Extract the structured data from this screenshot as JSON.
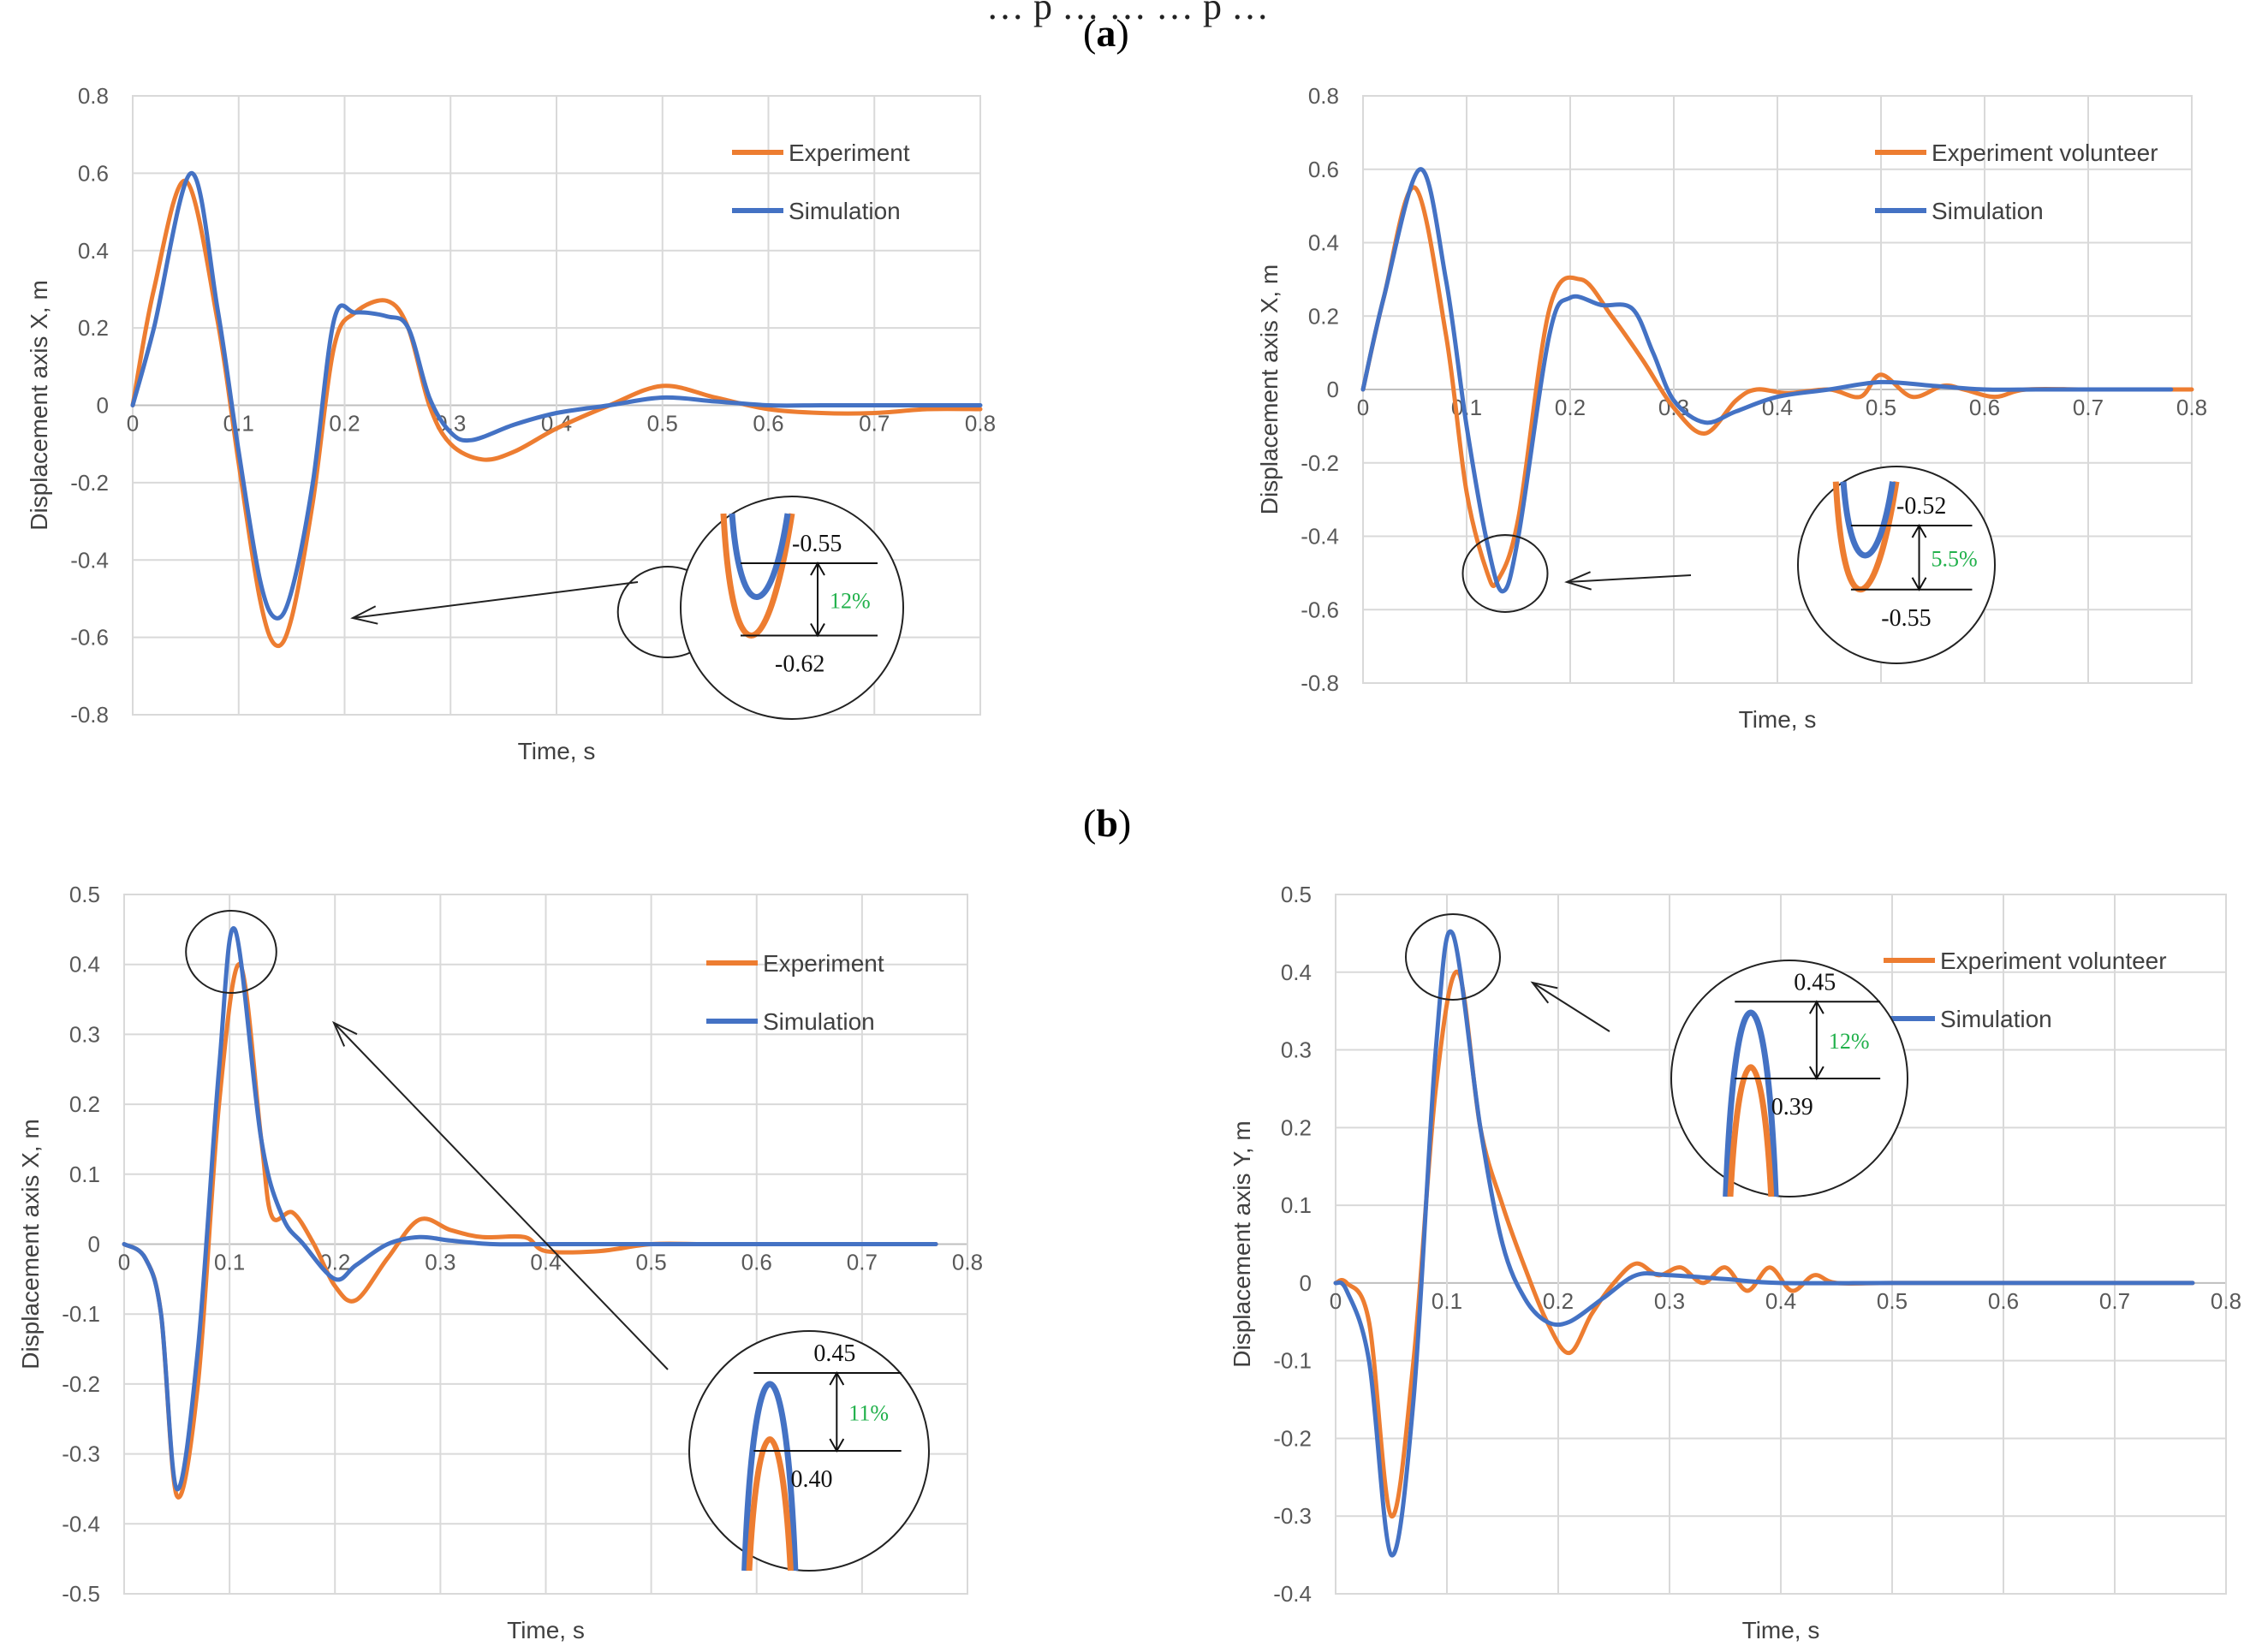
{
  "caption_partial": "… p … … … p …",
  "panels": [
    {
      "label": "a",
      "prefix": "(",
      "suffix": ")"
    },
    {
      "label": "b",
      "prefix": "(",
      "suffix": ")"
    }
  ],
  "colors": {
    "experiment": "#ED7D31",
    "simulation": "#4472C4",
    "grid": "#D9D9D9",
    "pct": "#22B14C"
  },
  "chart_data": [
    {
      "type": "line",
      "panel": "a",
      "position_word": "top-left",
      "xlabel": "Time, s",
      "ylabel": "Displacement axis X, m",
      "xlim": [
        0,
        0.8
      ],
      "ylim": [
        -0.8,
        0.8
      ],
      "xticks": [
        0,
        0.1,
        0.2,
        0.3,
        0.4,
        0.5,
        0.6,
        0.7,
        0.8
      ],
      "xtick_labels": [
        "0",
        "0.1",
        "0.2",
        "0.3",
        "0.4",
        "0.5",
        "0.6",
        "0.7",
        "0.8"
      ],
      "yticks": [
        -0.8,
        -0.6,
        -0.4,
        -0.2,
        0,
        0.2,
        0.4,
        0.6,
        0.8
      ],
      "ytick_labels": [
        "-0.8",
        "-0.6",
        "-0.4",
        "-0.2",
        "0",
        "0.2",
        "0.4",
        "0.6",
        "0.8"
      ],
      "legend": [
        "Experiment",
        "Simulation"
      ],
      "legend_position": "top-right",
      "series": [
        {
          "name": "Experiment",
          "x": [
            0,
            0.02,
            0.05,
            0.08,
            0.1,
            0.12,
            0.135,
            0.15,
            0.17,
            0.19,
            0.21,
            0.24,
            0.26,
            0.28,
            0.3,
            0.33,
            0.36,
            0.4,
            0.45,
            0.5,
            0.55,
            0.6,
            0.65,
            0.7,
            0.75,
            0.8
          ],
          "y": [
            0,
            0.3,
            0.58,
            0.22,
            -0.15,
            -0.5,
            -0.62,
            -0.55,
            -0.25,
            0.15,
            0.24,
            0.27,
            0.2,
            0.0,
            -0.1,
            -0.14,
            -0.12,
            -0.06,
            0.0,
            0.05,
            0.02,
            -0.01,
            -0.02,
            -0.02,
            -0.01,
            -0.01
          ]
        },
        {
          "name": "Simulation",
          "x": [
            0,
            0.02,
            0.055,
            0.08,
            0.1,
            0.12,
            0.135,
            0.15,
            0.17,
            0.19,
            0.21,
            0.24,
            0.26,
            0.28,
            0.3,
            0.32,
            0.36,
            0.4,
            0.45,
            0.5,
            0.55,
            0.6,
            0.65,
            0.7,
            0.75,
            0.8
          ],
          "y": [
            0,
            0.2,
            0.6,
            0.25,
            -0.12,
            -0.45,
            -0.55,
            -0.48,
            -0.2,
            0.22,
            0.24,
            0.23,
            0.2,
            0.02,
            -0.07,
            -0.09,
            -0.05,
            -0.02,
            0.0,
            0.02,
            0.01,
            0.0,
            0.0,
            0.0,
            0.0,
            0.0
          ]
        }
      ],
      "zoom": {
        "values": [
          "-0.55",
          "-0.62"
        ],
        "percent": "12%"
      }
    },
    {
      "type": "line",
      "panel": "a",
      "position_word": "top-right",
      "xlabel": "Time, s",
      "ylabel": "Displacement axis X, m",
      "xlim": [
        0,
        0.8
      ],
      "ylim": [
        -0.8,
        0.8
      ],
      "xticks": [
        0,
        0.1,
        0.2,
        0.3,
        0.4,
        0.5,
        0.6,
        0.7,
        0.8
      ],
      "xtick_labels": [
        "0",
        "0.1",
        "0.2",
        "0.3",
        "0.4",
        "0.5",
        "0.6",
        "0.7",
        "0.8"
      ],
      "yticks": [
        -0.8,
        -0.6,
        -0.4,
        -0.2,
        0,
        0.2,
        0.4,
        0.6,
        0.8
      ],
      "ytick_labels": [
        "-0.8",
        "-0.6",
        "-0.4",
        "-0.2",
        "0",
        "0.2",
        "0.4",
        "0.6",
        "0.8"
      ],
      "legend": [
        "Experiment volunteer",
        "Simulation"
      ],
      "legend_position": "top-right",
      "series": [
        {
          "name": "Experiment volunteer",
          "x": [
            0,
            0.02,
            0.05,
            0.08,
            0.1,
            0.12,
            0.13,
            0.15,
            0.18,
            0.21,
            0.24,
            0.27,
            0.3,
            0.33,
            0.36,
            0.38,
            0.41,
            0.45,
            0.48,
            0.5,
            0.53,
            0.56,
            0.58,
            0.61,
            0.64,
            0.7,
            0.78,
            0.8
          ],
          "y": [
            0,
            0.25,
            0.55,
            0.15,
            -0.28,
            -0.5,
            -0.52,
            -0.35,
            0.22,
            0.3,
            0.2,
            0.08,
            -0.05,
            -0.12,
            -0.03,
            0.0,
            -0.01,
            0.0,
            -0.02,
            0.04,
            -0.02,
            0.01,
            0.0,
            -0.02,
            0.0,
            0.0,
            0.0,
            0.0
          ]
        },
        {
          "name": "Simulation",
          "x": [
            0,
            0.02,
            0.055,
            0.08,
            0.1,
            0.12,
            0.135,
            0.15,
            0.18,
            0.2,
            0.23,
            0.26,
            0.28,
            0.3,
            0.33,
            0.36,
            0.4,
            0.45,
            0.5,
            0.55,
            0.6,
            0.65,
            0.7,
            0.78
          ],
          "y": [
            0,
            0.25,
            0.6,
            0.3,
            -0.1,
            -0.42,
            -0.55,
            -0.4,
            0.15,
            0.25,
            0.23,
            0.22,
            0.1,
            -0.03,
            -0.09,
            -0.06,
            -0.02,
            0.0,
            0.02,
            0.01,
            0.0,
            0.0,
            0.0,
            0.0
          ]
        }
      ],
      "zoom": {
        "values": [
          "-0.52",
          "-0.55"
        ],
        "percent": "5.5%"
      }
    },
    {
      "type": "line",
      "panel": "b",
      "position_word": "bottom-left",
      "xlabel": "Time, s",
      "ylabel": "Displacement axis X, m",
      "xlim": [
        0,
        0.8
      ],
      "ylim": [
        -0.5,
        0.5
      ],
      "xticks": [
        0,
        0.1,
        0.2,
        0.3,
        0.4,
        0.5,
        0.6,
        0.7,
        0.8
      ],
      "xtick_labels": [
        "0",
        "0.1",
        "0.2",
        "0.3",
        "0.4",
        "0.5",
        "0.6",
        "0.7",
        "0.8"
      ],
      "yticks": [
        -0.5,
        -0.4,
        -0.3,
        -0.2,
        -0.1,
        0,
        0.1,
        0.2,
        0.3,
        0.4,
        0.5
      ],
      "ytick_labels": [
        "-0.5",
        "-0.4",
        "-0.3",
        "-0.2",
        "-0.1",
        "0",
        "0.1",
        "0.2",
        "0.3",
        "0.4",
        "0.5"
      ],
      "legend": [
        "Experiment",
        "Simulation"
      ],
      "legend_position": "top-right",
      "series": [
        {
          "name": "Experiment",
          "x": [
            0,
            0.02,
            0.035,
            0.05,
            0.07,
            0.09,
            0.11,
            0.13,
            0.14,
            0.16,
            0.18,
            0.2,
            0.22,
            0.25,
            0.28,
            0.31,
            0.34,
            0.38,
            0.4,
            0.45,
            0.5,
            0.55,
            0.6,
            0.65,
            0.7,
            0.77
          ],
          "y": [
            0,
            -0.02,
            -0.1,
            -0.36,
            -0.2,
            0.2,
            0.4,
            0.15,
            0.04,
            0.045,
            0.0,
            -0.06,
            -0.08,
            -0.02,
            0.035,
            0.02,
            0.01,
            0.01,
            -0.01,
            -0.01,
            0.0,
            0.0,
            0.0,
            0.0,
            0.0,
            0.0
          ]
        },
        {
          "name": "Simulation",
          "x": [
            0,
            0.02,
            0.035,
            0.05,
            0.07,
            0.09,
            0.105,
            0.13,
            0.15,
            0.17,
            0.2,
            0.22,
            0.25,
            0.28,
            0.31,
            0.35,
            0.4,
            0.5,
            0.6,
            0.7,
            0.77
          ],
          "y": [
            0,
            -0.02,
            -0.1,
            -0.35,
            -0.15,
            0.25,
            0.45,
            0.15,
            0.04,
            0.0,
            -0.05,
            -0.03,
            0.0,
            0.01,
            0.005,
            0.0,
            0.0,
            0.0,
            0.0,
            0.0,
            0.0
          ]
        }
      ],
      "zoom": {
        "values": [
          "0.45",
          "0.40"
        ],
        "percent": "11%"
      }
    },
    {
      "type": "line",
      "panel": "b",
      "position_word": "bottom-right",
      "xlabel": "Time, s",
      "ylabel": "Displacement axis Y, m",
      "xlim": [
        0,
        0.8
      ],
      "ylim": [
        -0.4,
        0.5
      ],
      "xticks": [
        0,
        0.1,
        0.2,
        0.3,
        0.4,
        0.5,
        0.6,
        0.7,
        0.8
      ],
      "xtick_labels": [
        "0",
        "0.1",
        "0.2",
        "0.3",
        "0.4",
        "0.5",
        "0.6",
        "0.7",
        "0.8"
      ],
      "yticks": [
        -0.4,
        -0.3,
        -0.2,
        -0.1,
        0,
        0.1,
        0.2,
        0.3,
        0.4,
        0.5
      ],
      "ytick_labels": [
        "-0.4",
        "-0.3",
        "-0.2",
        "-0.1",
        "0",
        "0.1",
        "0.2",
        "0.3",
        "0.4",
        "0.5"
      ],
      "legend": [
        "Experiment volunteer",
        "Simulation"
      ],
      "legend_position": "top-right",
      "series": [
        {
          "name": "Experiment volunteer",
          "x": [
            0,
            0.01,
            0.03,
            0.05,
            0.07,
            0.09,
            0.11,
            0.13,
            0.15,
            0.17,
            0.19,
            0.21,
            0.23,
            0.25,
            0.27,
            0.29,
            0.31,
            0.33,
            0.35,
            0.37,
            0.39,
            0.41,
            0.43,
            0.45,
            0.5,
            0.6,
            0.7,
            0.77
          ],
          "y": [
            0,
            0.0,
            -0.05,
            -0.3,
            -0.1,
            0.25,
            0.4,
            0.2,
            0.1,
            0.02,
            -0.05,
            -0.09,
            -0.04,
            0.0,
            0.025,
            0.01,
            0.02,
            0.0,
            0.02,
            -0.01,
            0.02,
            -0.01,
            0.01,
            0.0,
            0.0,
            0.0,
            0.0,
            0.0
          ]
        },
        {
          "name": "Simulation",
          "x": [
            0,
            0.01,
            0.03,
            0.05,
            0.07,
            0.09,
            0.105,
            0.13,
            0.15,
            0.17,
            0.19,
            0.21,
            0.24,
            0.27,
            0.3,
            0.35,
            0.4,
            0.5,
            0.6,
            0.7,
            0.77
          ],
          "y": [
            0,
            -0.01,
            -0.1,
            -0.35,
            -0.15,
            0.3,
            0.45,
            0.2,
            0.05,
            -0.02,
            -0.05,
            -0.05,
            -0.02,
            0.01,
            0.01,
            0.005,
            0.0,
            0.0,
            0.0,
            0.0,
            0.0
          ]
        }
      ],
      "zoom": {
        "values": [
          "0.45",
          "0.39"
        ],
        "percent": "12%"
      }
    }
  ]
}
